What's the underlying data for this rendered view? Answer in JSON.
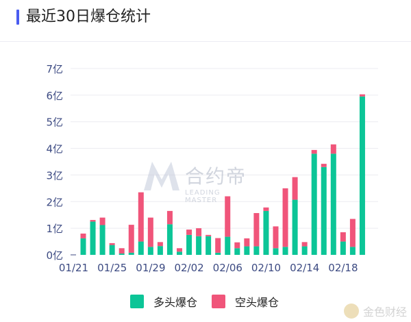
{
  "header": {
    "title": "最近30日爆仓统计"
  },
  "legend": {
    "long": "多头爆仓",
    "short": "空头爆仓"
  },
  "watermarks": {
    "center": "合约帝",
    "center_sub": "LEADING MASTER",
    "corner": "金色财经"
  },
  "colors": {
    "long": "#0cc597",
    "short": "#f0557a",
    "axis_text": "#3c4a82",
    "grid": "#ececf0",
    "accent": "#4a5cf0"
  },
  "chart_data": {
    "type": "bar",
    "stacked": true,
    "ylim": [
      0,
      7
    ],
    "ytick_labels": [
      "0亿",
      "1亿",
      "2亿",
      "3亿",
      "4亿",
      "5亿",
      "6亿",
      "7亿"
    ],
    "xtick_labels": [
      "01/21",
      "01/25",
      "01/29",
      "02/02",
      "02/06",
      "02/10",
      "02/14",
      "02/18"
    ],
    "xtick_index": [
      0,
      4,
      8,
      12,
      16,
      20,
      24,
      28
    ],
    "series": [
      {
        "name": "多头爆仓",
        "values": [
          0.62,
          1.25,
          1.12,
          0.37,
          0.05,
          0.08,
          0.5,
          0.3,
          0.33,
          1.15,
          0.12,
          0.75,
          0.7,
          0.7,
          0.08,
          0.68,
          0.25,
          0.32,
          0.32,
          1.65,
          0.25,
          0.3,
          2.07,
          0.32,
          3.8,
          3.3,
          3.8,
          0.5,
          0.3,
          5.95
        ]
      },
      {
        "name": "空头爆仓",
        "values": [
          0.18,
          0.06,
          0.28,
          0.07,
          0.2,
          1.05,
          1.85,
          1.1,
          0.15,
          0.5,
          0.13,
          0.2,
          0.3,
          0.05,
          0.55,
          1.52,
          0.22,
          0.3,
          1.25,
          0.13,
          0.82,
          2.2,
          0.85,
          0.16,
          0.14,
          0.12,
          0.35,
          0.35,
          1.05,
          0.08
        ]
      }
    ]
  }
}
